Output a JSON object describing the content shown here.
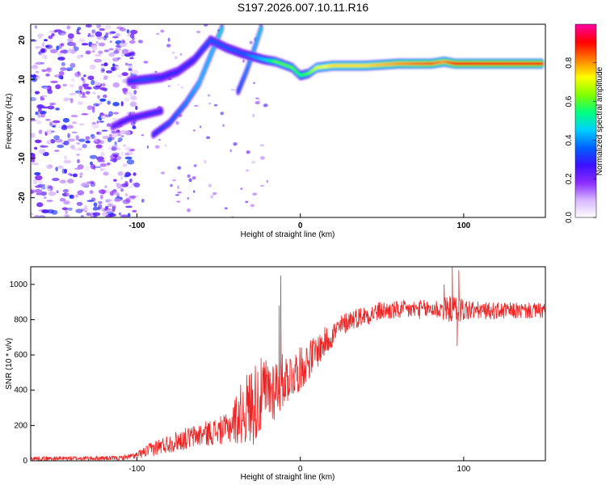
{
  "title": "S197.2026.007.10.11.R16",
  "chart_data": [
    {
      "type": "heatmap",
      "name": "spectrogram",
      "xlabel": "Height of straight line (km)",
      "ylabel": "Frequency (Hz)",
      "xlim": [
        -165,
        150
      ],
      "ylim": [
        -25,
        24
      ],
      "xticks": [
        -100,
        0,
        100
      ],
      "yticks": [
        -20,
        -10,
        0,
        10,
        20
      ],
      "colorbar": {
        "label": "Normalized spectral amplitude",
        "range": [
          0,
          1
        ],
        "ticks": [
          0.0,
          0.2,
          0.4,
          0.6,
          0.8
        ],
        "tick_labels": [
          "0.0",
          "0.2",
          "0.4",
          "0.6",
          "0.8"
        ],
        "colors": [
          "#ffffff",
          "#d8b8ff",
          "#8c2cff",
          "#3c10ff",
          "#0060ff",
          "#00d0ff",
          "#00ff80",
          "#80ff00",
          "#ffff00",
          "#ff8000",
          "#ff0000",
          "#ff00a0"
        ]
      },
      "main_trace": [
        {
          "x": -105,
          "y": 9.5,
          "a": 0.3
        },
        {
          "x": -95,
          "y": 10.0,
          "a": 0.35
        },
        {
          "x": -85,
          "y": 10.5,
          "a": 0.3
        },
        {
          "x": -75,
          "y": 12.0,
          "a": 0.3
        },
        {
          "x": -65,
          "y": 15.0,
          "a": 0.3
        },
        {
          "x": -55,
          "y": 20.0,
          "a": 0.35
        },
        {
          "x": -45,
          "y": 18.0,
          "a": 0.35
        },
        {
          "x": -35,
          "y": 16.5,
          "a": 0.35
        },
        {
          "x": -22,
          "y": 15.0,
          "a": 0.45
        },
        {
          "x": -15,
          "y": 14.5,
          "a": 0.6
        },
        {
          "x": -5,
          "y": 13.0,
          "a": 0.6
        },
        {
          "x": 0,
          "y": 11.0,
          "a": 0.55
        },
        {
          "x": 5,
          "y": 11.5,
          "a": 0.6
        },
        {
          "x": 10,
          "y": 13.0,
          "a": 0.7
        },
        {
          "x": 20,
          "y": 13.5,
          "a": 0.75
        },
        {
          "x": 40,
          "y": 13.5,
          "a": 0.75
        },
        {
          "x": 60,
          "y": 14.0,
          "a": 0.8
        },
        {
          "x": 80,
          "y": 14.0,
          "a": 0.85
        },
        {
          "x": 88,
          "y": 14.5,
          "a": 0.8
        },
        {
          "x": 95,
          "y": 14.0,
          "a": 0.9
        },
        {
          "x": 120,
          "y": 14.0,
          "a": 0.9
        },
        {
          "x": 148,
          "y": 14.0,
          "a": 0.9
        }
      ],
      "secondary_traces": [
        {
          "name": "rising-branch",
          "points": [
            {
              "x": -90,
              "y": -4.0,
              "a": 0.3
            },
            {
              "x": -80,
              "y": -1.0,
              "a": 0.35
            },
            {
              "x": -70,
              "y": 4.0,
              "a": 0.4
            },
            {
              "x": -62,
              "y": 9.0,
              "a": 0.45
            },
            {
              "x": -55,
              "y": 16.0,
              "a": 0.45
            },
            {
              "x": -48,
              "y": 23.0,
              "a": 0.5
            }
          ]
        },
        {
          "name": "steep-branch",
          "points": [
            {
              "x": -38,
              "y": 7.0,
              "a": 0.35
            },
            {
              "x": -33,
              "y": 12.0,
              "a": 0.4
            },
            {
              "x": -28,
              "y": 18.0,
              "a": 0.45
            },
            {
              "x": -24,
              "y": 23.0,
              "a": 0.5
            }
          ]
        },
        {
          "name": "low-branch",
          "points": [
            {
              "x": -115,
              "y": -2.0,
              "a": 0.25
            },
            {
              "x": -105,
              "y": 0.0,
              "a": 0.3
            },
            {
              "x": -95,
              "y": 1.0,
              "a": 0.3
            },
            {
              "x": -85,
              "y": 2.0,
              "a": 0.3
            }
          ]
        }
      ],
      "noise_region_x": [
        -165,
        -100
      ]
    },
    {
      "type": "line",
      "name": "snr",
      "xlabel": "Height of straight line (km)",
      "ylabel": "SNR (10 * v/v)",
      "xlim": [
        -165,
        150
      ],
      "ylim": [
        0,
        1100
      ],
      "xticks": [
        -100,
        0,
        100
      ],
      "yticks": [
        0,
        200,
        400,
        600,
        800,
        1000
      ],
      "color": "#ee2222",
      "envelope": [
        {
          "x": -165,
          "base": 12,
          "amp": 25
        },
        {
          "x": -110,
          "base": 15,
          "amp": 25
        },
        {
          "x": -100,
          "base": 30,
          "amp": 40
        },
        {
          "x": -90,
          "base": 70,
          "amp": 90
        },
        {
          "x": -80,
          "base": 100,
          "amp": 110
        },
        {
          "x": -60,
          "base": 150,
          "amp": 140
        },
        {
          "x": -45,
          "base": 180,
          "amp": 170
        },
        {
          "x": -35,
          "base": 280,
          "amp": 380
        },
        {
          "x": -28,
          "base": 330,
          "amp": 480
        },
        {
          "x": -22,
          "base": 380,
          "amp": 420
        },
        {
          "x": -15,
          "base": 420,
          "amp": 380
        },
        {
          "x": -10,
          "base": 460,
          "amp": 300
        },
        {
          "x": 0,
          "base": 520,
          "amp": 250
        },
        {
          "x": 10,
          "base": 620,
          "amp": 200
        },
        {
          "x": 20,
          "base": 720,
          "amp": 150
        },
        {
          "x": 30,
          "base": 800,
          "amp": 120
        },
        {
          "x": 50,
          "base": 850,
          "amp": 110
        },
        {
          "x": 80,
          "base": 860,
          "amp": 110
        },
        {
          "x": 95,
          "base": 860,
          "amp": 160
        },
        {
          "x": 110,
          "base": 850,
          "amp": 100
        },
        {
          "x": 150,
          "base": 850,
          "amp": 90
        }
      ],
      "spikes": [
        {
          "x": -12,
          "y": 1050
        },
        {
          "x": -13,
          "y": 880
        },
        {
          "x": 88,
          "y": 1000
        },
        {
          "x": 93,
          "y": 1100
        },
        {
          "x": 97,
          "y": 1080
        },
        {
          "x": 96,
          "y": 650
        }
      ]
    }
  ]
}
